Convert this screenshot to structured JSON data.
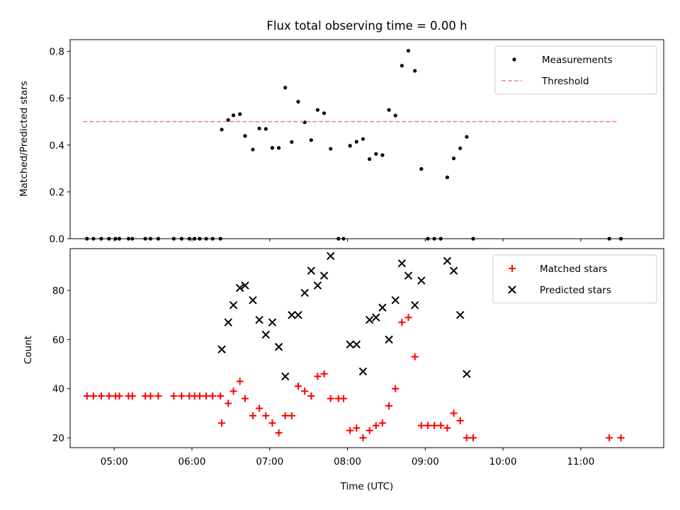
{
  "chart_data": [
    {
      "type": "scatter",
      "title": "Flux total observing time = 0.00 h",
      "ylabel": "Matched/Predicted stars",
      "xlabel": "",
      "xlim": [
        "04:26",
        "12:04"
      ],
      "ylim": [
        0,
        0.85
      ],
      "x_ticks": [
        "05:00",
        "06:00",
        "07:00",
        "08:00",
        "09:00",
        "10:00",
        "11:00"
      ],
      "y_ticks": [
        "0.0",
        "0.2",
        "0.4",
        "0.6",
        "0.8"
      ],
      "legend_position": "top-right",
      "series": [
        {
          "name": "Measurements",
          "color": "#000000",
          "marker": "dot",
          "points": [
            [
              "04:39",
              0
            ],
            [
              "04:44",
              0
            ],
            [
              "04:50",
              0
            ],
            [
              "04:56",
              0
            ],
            [
              "05:01",
              0
            ],
            [
              "05:04",
              0
            ],
            [
              "05:11",
              0
            ],
            [
              "05:14",
              0
            ],
            [
              "05:24",
              0
            ],
            [
              "05:28",
              0
            ],
            [
              "05:34",
              0
            ],
            [
              "05:46",
              0
            ],
            [
              "05:52",
              0
            ],
            [
              "05:58",
              0
            ],
            [
              "06:02",
              0
            ],
            [
              "06:06",
              0
            ],
            [
              "06:11",
              0
            ],
            [
              "06:16",
              0
            ],
            [
              "06:22",
              0
            ],
            [
              "06:23",
              0.466
            ],
            [
              "06:28",
              0.507
            ],
            [
              "06:32",
              0.527
            ],
            [
              "06:37",
              0.532
            ],
            [
              "06:41",
              0.439
            ],
            [
              "06:47",
              0.381
            ],
            [
              "06:52",
              0.471
            ],
            [
              "06:57",
              0.469
            ],
            [
              "07:02",
              0.388
            ],
            [
              "07:07",
              0.388
            ],
            [
              "07:12",
              0.645
            ],
            [
              "07:17",
              0.413
            ],
            [
              "07:22",
              0.585
            ],
            [
              "07:27",
              0.497
            ],
            [
              "07:32",
              0.421
            ],
            [
              "07:37",
              0.55
            ],
            [
              "07:42",
              0.536
            ],
            [
              "07:47",
              0.384
            ],
            [
              "07:53",
              0
            ],
            [
              "07:57",
              0
            ],
            [
              "08:02",
              0.397
            ],
            [
              "08:07",
              0.414
            ],
            [
              "08:12",
              0.426
            ],
            [
              "08:17",
              0.34
            ],
            [
              "08:22",
              0.362
            ],
            [
              "08:27",
              0.357
            ],
            [
              "08:32",
              0.55
            ],
            [
              "08:37",
              0.526
            ],
            [
              "08:42",
              0.739
            ],
            [
              "08:47",
              0.803
            ],
            [
              "08:52",
              0.717
            ],
            [
              "08:57",
              0.298
            ],
            [
              "09:02",
              0
            ],
            [
              "09:07",
              0
            ],
            [
              "09:12",
              0
            ],
            [
              "09:17",
              0.262
            ],
            [
              "09:22",
              0.343
            ],
            [
              "09:27",
              0.386
            ],
            [
              "09:32",
              0.435
            ],
            [
              "09:37",
              0
            ],
            [
              "11:22",
              0
            ],
            [
              "11:31",
              0
            ]
          ]
        },
        {
          "name": "Threshold",
          "color": "#ff7f7f",
          "style": "dashed",
          "points": [
            [
              "04:36",
              0.5
            ],
            [
              "11:29",
              0.5
            ]
          ]
        }
      ]
    },
    {
      "type": "scatter",
      "title": "",
      "xlabel": "Time (UTC)",
      "ylabel": "Count",
      "xlim": [
        "04:26",
        "12:04"
      ],
      "ylim": [
        16,
        97
      ],
      "x_ticks": [
        "05:00",
        "06:00",
        "07:00",
        "08:00",
        "09:00",
        "10:00",
        "11:00"
      ],
      "y_ticks": [
        "20",
        "40",
        "60",
        "80"
      ],
      "legend_position": "top-right",
      "series": [
        {
          "name": "Matched stars",
          "color": "#ff0000",
          "marker": "plus",
          "points": [
            [
              "04:39",
              37
            ],
            [
              "04:44",
              37
            ],
            [
              "04:50",
              37
            ],
            [
              "04:56",
              37
            ],
            [
              "05:01",
              37
            ],
            [
              "05:04",
              37
            ],
            [
              "05:11",
              37
            ],
            [
              "05:14",
              37
            ],
            [
              "05:24",
              37
            ],
            [
              "05:28",
              37
            ],
            [
              "05:34",
              37
            ],
            [
              "05:46",
              37
            ],
            [
              "05:52",
              37
            ],
            [
              "05:58",
              37
            ],
            [
              "06:02",
              37
            ],
            [
              "06:06",
              37
            ],
            [
              "06:11",
              37
            ],
            [
              "06:16",
              37
            ],
            [
              "06:22",
              37
            ],
            [
              "06:23",
              26
            ],
            [
              "06:28",
              34
            ],
            [
              "06:32",
              39
            ],
            [
              "06:37",
              43
            ],
            [
              "06:41",
              36
            ],
            [
              "06:47",
              29
            ],
            [
              "06:52",
              32
            ],
            [
              "06:57",
              29
            ],
            [
              "07:02",
              26
            ],
            [
              "07:07",
              22
            ],
            [
              "07:12",
              29
            ],
            [
              "07:17",
              29
            ],
            [
              "07:22",
              41
            ],
            [
              "07:27",
              39
            ],
            [
              "07:32",
              37
            ],
            [
              "07:37",
              45
            ],
            [
              "07:42",
              46
            ],
            [
              "07:47",
              36
            ],
            [
              "07:53",
              36
            ],
            [
              "07:57",
              36
            ],
            [
              "08:02",
              23
            ],
            [
              "08:07",
              24
            ],
            [
              "08:12",
              20
            ],
            [
              "08:17",
              23
            ],
            [
              "08:22",
              25
            ],
            [
              "08:27",
              26
            ],
            [
              "08:32",
              33
            ],
            [
              "08:37",
              40
            ],
            [
              "08:42",
              67
            ],
            [
              "08:47",
              69
            ],
            [
              "08:52",
              53
            ],
            [
              "08:57",
              25
            ],
            [
              "09:02",
              25
            ],
            [
              "09:07",
              25
            ],
            [
              "09:12",
              25
            ],
            [
              "09:17",
              24
            ],
            [
              "09:22",
              30
            ],
            [
              "09:27",
              27
            ],
            [
              "09:32",
              20
            ],
            [
              "09:37",
              20
            ],
            [
              "11:22",
              20
            ],
            [
              "11:31",
              20
            ]
          ]
        },
        {
          "name": "Predicted stars",
          "color": "#000000",
          "marker": "x",
          "points": [
            [
              "06:23",
              56
            ],
            [
              "06:28",
              67
            ],
            [
              "06:32",
              74
            ],
            [
              "06:37",
              81
            ],
            [
              "06:41",
              82
            ],
            [
              "06:47",
              76
            ],
            [
              "06:52",
              68
            ],
            [
              "06:57",
              62
            ],
            [
              "07:02",
              67
            ],
            [
              "07:07",
              57
            ],
            [
              "07:12",
              45
            ],
            [
              "07:17",
              70
            ],
            [
              "07:22",
              70
            ],
            [
              "07:27",
              79
            ],
            [
              "07:32",
              88
            ],
            [
              "07:37",
              82
            ],
            [
              "07:42",
              86
            ],
            [
              "07:47",
              94
            ],
            [
              "08:02",
              58
            ],
            [
              "08:07",
              58
            ],
            [
              "08:12",
              47
            ],
            [
              "08:17",
              68
            ],
            [
              "08:22",
              69
            ],
            [
              "08:27",
              73
            ],
            [
              "08:32",
              60
            ],
            [
              "08:37",
              76
            ],
            [
              "08:42",
              91
            ],
            [
              "08:47",
              86
            ],
            [
              "08:52",
              74
            ],
            [
              "08:57",
              84
            ],
            [
              "09:17",
              92
            ],
            [
              "09:22",
              88
            ],
            [
              "09:27",
              70
            ],
            [
              "09:32",
              46
            ]
          ]
        }
      ]
    }
  ]
}
